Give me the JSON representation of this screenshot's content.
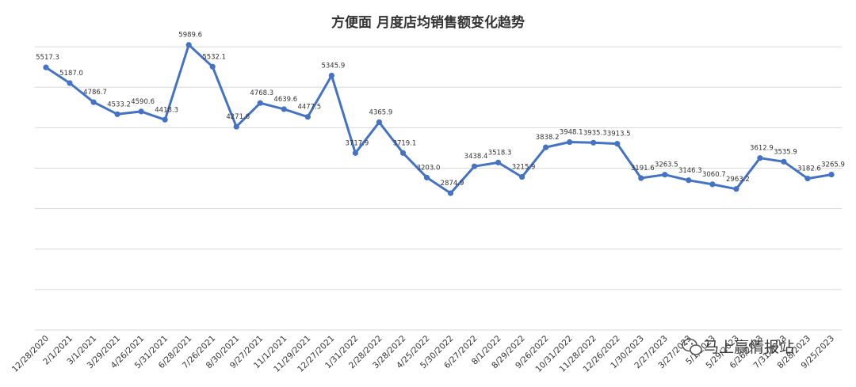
{
  "chart_data": {
    "type": "line",
    "title": "方便面 月度店均销售额变化趋势",
    "xlabel": "",
    "ylabel": "",
    "ylim": [
      0,
      6800
    ],
    "grid": true,
    "legend": "none",
    "categories": [
      "12/28/2020",
      "2/1/2021",
      "3/1/2021",
      "3/29/2021",
      "4/26/2021",
      "5/31/2021",
      "6/28/2021",
      "7/26/2021",
      "8/30/2021",
      "9/27/2021",
      "11/1/2021",
      "11/29/2021",
      "12/27/2021",
      "1/31/2022",
      "2/28/2022",
      "3/28/2022",
      "4/25/2022",
      "5/30/2022",
      "6/27/2022",
      "8/1/2022",
      "8/29/2022",
      "9/26/2022",
      "10/31/2022",
      "11/28/2022",
      "12/26/2022",
      "1/30/2023",
      "2/27/2023",
      "3/27/2023",
      "5/1/2023",
      "5/29/2023",
      "6/26/2023",
      "7/31/2023",
      "8/28/2023",
      "9/25/2023"
    ],
    "series": [
      {
        "name": "",
        "values": [
          5517.3,
          5187.0,
          4786.7,
          4533.2,
          4590.6,
          4418.3,
          5989.6,
          5532.1,
          4271.6,
          4768.3,
          4639.6,
          4477.5,
          5345.9,
          3717.9,
          4365.9,
          3719.1,
          3203.0,
          2874.9,
          3438.4,
          3518.3,
          3215.9,
          3838.2,
          3948.1,
          3935.3,
          3913.5,
          3191.6,
          3263.5,
          3146.3,
          3060.7,
          2963.2,
          3612.9,
          3535.9,
          3182.6,
          3265.9
        ],
        "labels": [
          "5517.3",
          "5187.0",
          "4786.7",
          "4533.2",
          "4590.6",
          "4418.3",
          "5989.6",
          "5532.1",
          "4271.6",
          "4768.3",
          "4639.6",
          "4477.5",
          "5345.9",
          "3717.9",
          "4365.9",
          "3719.1",
          "3203.0",
          "2874.9",
          "3438.4",
          "3518.3",
          "3215.9",
          "3838.2",
          "3948.1",
          "3935.3",
          "3913.5",
          "3191.6",
          "3263.5",
          "3146.3",
          "3060.7",
          "2963.2",
          "3612.9",
          "3535.9",
          "3182.6",
          "3265.9"
        ]
      }
    ],
    "color": "#4472c4"
  },
  "watermark": "马上赢情报站",
  "watermark_icon": "wechat-icon"
}
